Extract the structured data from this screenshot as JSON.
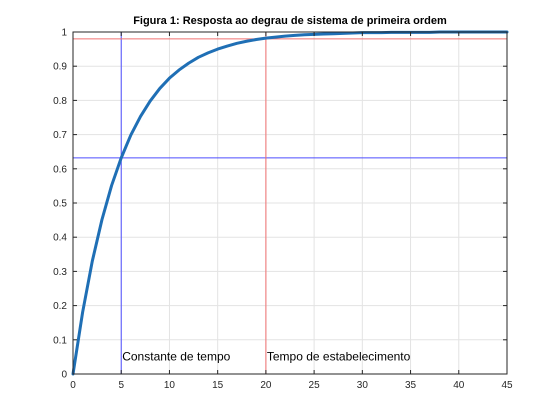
{
  "chart_data": {
    "type": "line",
    "title": "Figura 1: Resposta ao degrau de sistema de primeira ordem",
    "xlabel": "",
    "ylabel": "",
    "xlim": [
      0,
      45
    ],
    "ylim": [
      0,
      1
    ],
    "xticks": [
      0,
      5,
      10,
      15,
      20,
      25,
      30,
      35,
      40,
      45
    ],
    "yticks": [
      0,
      0.1,
      0.2,
      0.3,
      0.4,
      0.5,
      0.6,
      0.7,
      0.8,
      0.9,
      1
    ],
    "xtick_labels": [
      "0",
      "5",
      "10",
      "15",
      "20",
      "25",
      "30",
      "35",
      "40",
      "45"
    ],
    "ytick_labels": [
      "0",
      "0.1",
      "0.2",
      "0.3",
      "0.4",
      "0.5",
      "0.6",
      "0.7",
      "0.8",
      "0.9",
      "1"
    ],
    "grid": true,
    "series": [
      {
        "color": "#1f6fb5",
        "x": [
          0,
          1,
          2,
          3,
          4,
          5,
          6,
          7,
          8,
          9,
          10,
          11,
          12,
          13,
          14,
          15,
          16,
          17,
          18,
          19,
          20,
          21,
          22,
          23,
          24,
          25,
          26,
          27,
          28,
          29,
          30,
          31,
          32,
          33,
          34,
          35,
          36,
          37,
          38,
          39,
          40,
          41,
          42,
          43,
          44,
          45
        ],
        "y": [
          0,
          0.181,
          0.33,
          0.451,
          0.551,
          0.632,
          0.699,
          0.753,
          0.798,
          0.835,
          0.865,
          0.889,
          0.909,
          0.926,
          0.939,
          0.95,
          0.959,
          0.967,
          0.973,
          0.978,
          0.982,
          0.985,
          0.988,
          0.99,
          0.992,
          0.993,
          0.994,
          0.995,
          0.996,
          0.997,
          0.998,
          0.998,
          0.998,
          0.999,
          0.999,
          0.999,
          0.999,
          0.999,
          1.0,
          1.0,
          1.0,
          1.0,
          1.0,
          1.0,
          1.0,
          1.0
        ]
      }
    ],
    "reference_lines": [
      {
        "orientation": "vertical",
        "value": 5,
        "color": "#4d4dff"
      },
      {
        "orientation": "horizontal",
        "value": 0.632,
        "color": "#4d4dff"
      },
      {
        "orientation": "vertical",
        "value": 20,
        "color": "#f07070"
      },
      {
        "orientation": "horizontal",
        "value": 0.98,
        "color": "#f07070"
      }
    ],
    "annotations": [
      {
        "text": "Constante de tempo",
        "x": 5,
        "y": 0.03
      },
      {
        "text": "Tempo de estabelecimento",
        "x": 20,
        "y": 0.03
      }
    ]
  }
}
